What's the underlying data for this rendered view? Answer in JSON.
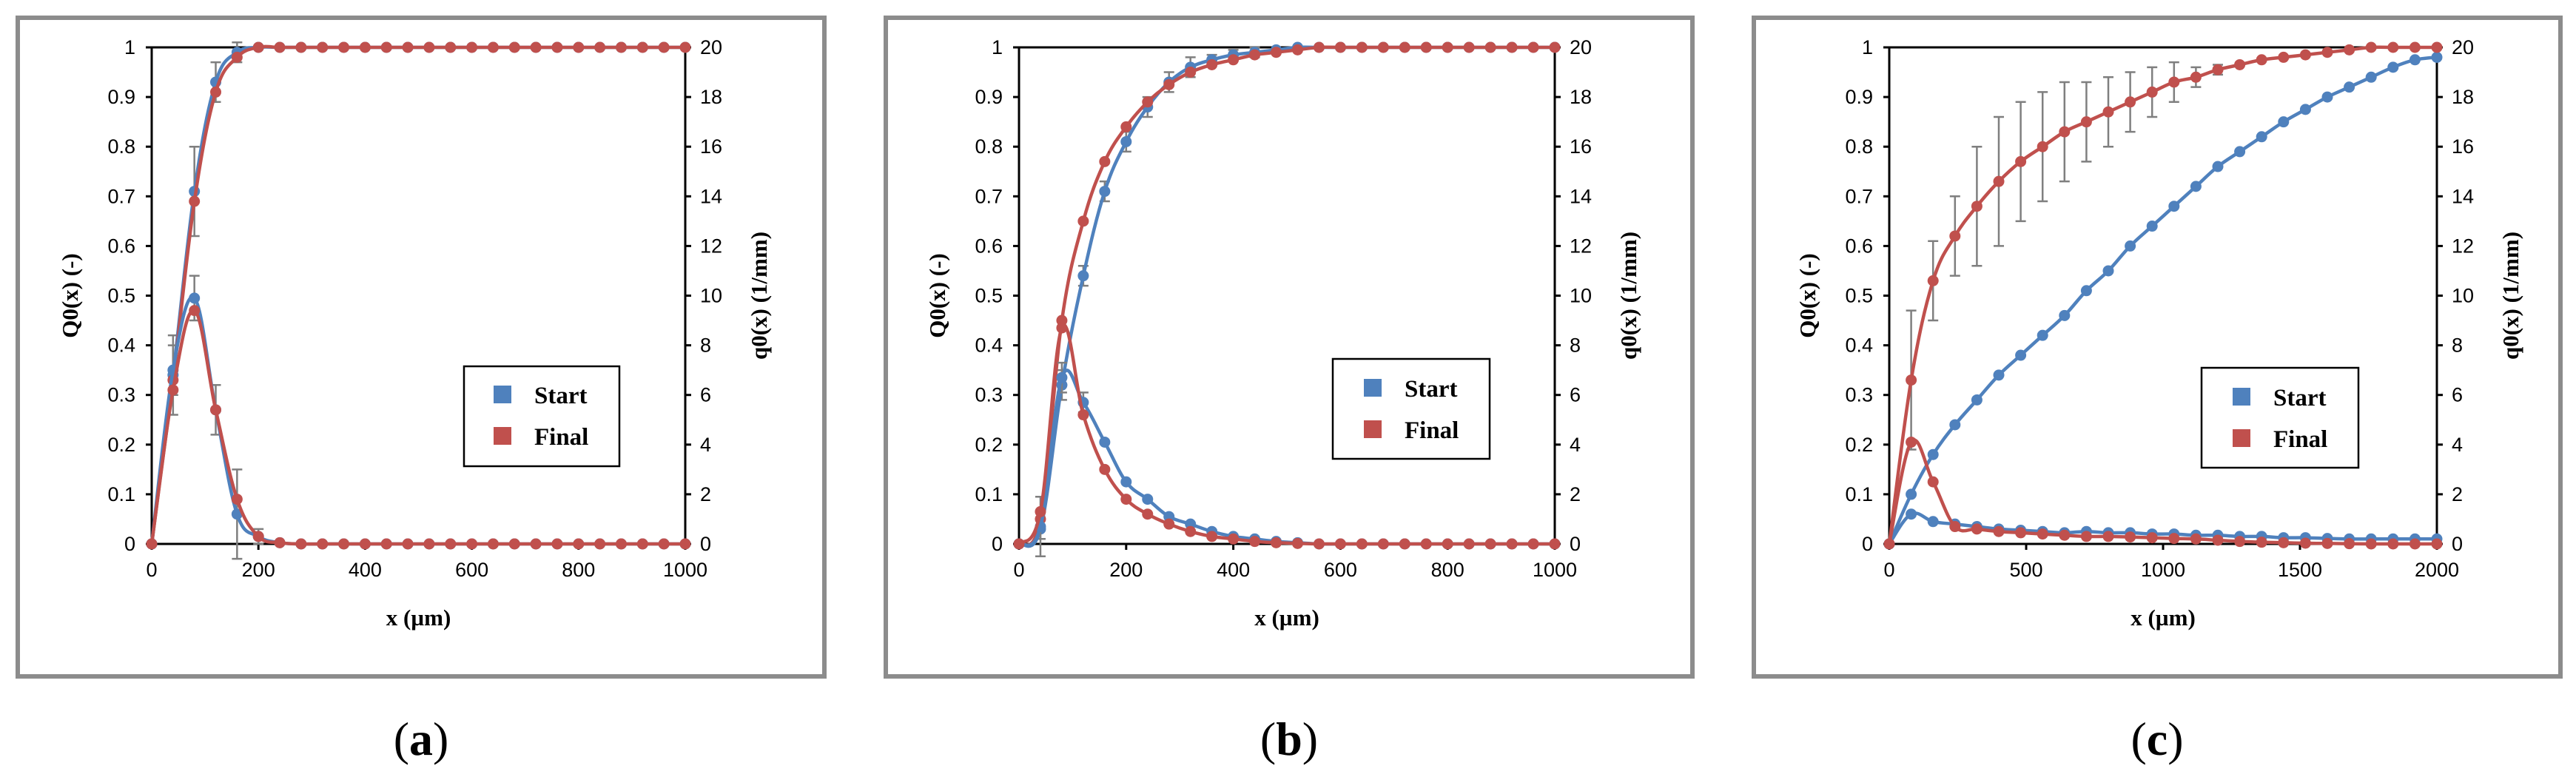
{
  "colors": {
    "start": "#4f81bd",
    "final": "#c0504d",
    "frame": "#8c8c8c"
  },
  "chart_data": [
    {
      "type": "line",
      "panel_label": "a",
      "xlabel": "x (µm)",
      "ylabel_left": "Q0(x) (-)",
      "ylabel_right": "q0(x) (1/mm)",
      "xlim": [
        0,
        1000
      ],
      "ylim_left": [
        0,
        1
      ],
      "ylim_right": [
        0,
        20
      ],
      "xticks": [
        "0",
        "200",
        "400",
        "600",
        "800",
        "1000"
      ],
      "yticks_left": [
        "0",
        "0.1",
        "0.2",
        "0.3",
        "0.4",
        "0.5",
        "0.6",
        "0.7",
        "0.8",
        "0.9",
        "1"
      ],
      "yticks_right": [
        "0",
        "2",
        "4",
        "6",
        "8",
        "10",
        "12",
        "14",
        "16",
        "18",
        "20"
      ],
      "legend": [
        "Start",
        "Final"
      ],
      "legend_position": "center-right",
      "x": [
        0,
        40,
        80,
        120,
        160,
        200,
        240,
        280,
        320,
        360,
        400,
        440,
        480,
        520,
        560,
        600,
        640,
        680,
        720,
        760,
        800,
        840,
        880,
        920,
        960,
        1000
      ],
      "series": [
        {
          "name": "Start Q0",
          "axis": "left",
          "values": [
            0,
            0.34,
            0.71,
            0.93,
            0.99,
            1,
            1,
            1,
            1,
            1,
            1,
            1,
            1,
            1,
            1,
            1,
            1,
            1,
            1,
            1,
            1,
            1,
            1,
            1,
            1,
            1
          ],
          "error": [
            0,
            0.08,
            0.09,
            0.04,
            0.02,
            0,
            0,
            0,
            0,
            0,
            0,
            0,
            0,
            0,
            0,
            0,
            0,
            0,
            0,
            0,
            0,
            0,
            0,
            0,
            0,
            0
          ]
        },
        {
          "name": "Final Q0",
          "axis": "left",
          "values": [
            0,
            0.33,
            0.69,
            0.91,
            0.98,
            1,
            1,
            1,
            1,
            1,
            1,
            1,
            1,
            1,
            1,
            1,
            1,
            1,
            1,
            1,
            1,
            1,
            1,
            1,
            1,
            1
          ]
        },
        {
          "name": "Start q0",
          "axis": "right",
          "values": [
            0,
            7.0,
            9.9,
            5.4,
            1.2,
            0.3,
            0.05,
            0,
            0,
            0,
            0,
            0,
            0,
            0,
            0,
            0,
            0,
            0,
            0,
            0,
            0,
            0,
            0,
            0,
            0,
            0
          ],
          "error": [
            0,
            1.0,
            0.9,
            1.0,
            1.8,
            0.3,
            0,
            0,
            0,
            0,
            0,
            0,
            0,
            0,
            0,
            0,
            0,
            0,
            0,
            0,
            0,
            0,
            0,
            0,
            0,
            0
          ]
        },
        {
          "name": "Final q0",
          "axis": "right",
          "values": [
            0,
            6.2,
            9.4,
            5.4,
            1.8,
            0.3,
            0.05,
            0,
            0,
            0,
            0,
            0,
            0,
            0,
            0,
            0,
            0,
            0,
            0,
            0,
            0,
            0,
            0,
            0,
            0,
            0
          ]
        }
      ]
    },
    {
      "type": "line",
      "panel_label": "b",
      "xlabel": "x (µm)",
      "ylabel_left": "Q0(x) (-)",
      "ylabel_right": "q0(x) (1/mm)",
      "xlim": [
        0,
        1000
      ],
      "ylim_left": [
        0,
        1
      ],
      "ylim_right": [
        0,
        20
      ],
      "xticks": [
        "0",
        "200",
        "400",
        "600",
        "800",
        "1000"
      ],
      "yticks_left": [
        "0",
        "0.1",
        "0.2",
        "0.3",
        "0.4",
        "0.5",
        "0.6",
        "0.7",
        "0.8",
        "0.9",
        "1"
      ],
      "yticks_right": [
        "0",
        "2",
        "4",
        "6",
        "8",
        "10",
        "12",
        "14",
        "16",
        "18",
        "20"
      ],
      "legend": [
        "Start",
        "Final"
      ],
      "legend_position": "center-right",
      "x": [
        0,
        40,
        80,
        120,
        160,
        200,
        240,
        280,
        320,
        360,
        400,
        440,
        480,
        520,
        560,
        600,
        640,
        680,
        720,
        760,
        800,
        840,
        880,
        920,
        960,
        1000
      ],
      "series": [
        {
          "name": "Start Q0",
          "axis": "left",
          "values": [
            0,
            0.03,
            0.32,
            0.54,
            0.71,
            0.81,
            0.88,
            0.93,
            0.96,
            0.975,
            0.985,
            0.99,
            0.995,
            1,
            1,
            1,
            1,
            1,
            1,
            1,
            1,
            1,
            1,
            1,
            1,
            1
          ],
          "error": [
            0,
            0.02,
            0.03,
            0.02,
            0.02,
            0.02,
            0.02,
            0.02,
            0.02,
            0.01,
            0.01,
            0.01,
            0,
            0,
            0,
            0,
            0,
            0,
            0,
            0,
            0,
            0,
            0,
            0,
            0,
            0
          ]
        },
        {
          "name": "Final Q0",
          "axis": "left",
          "values": [
            0,
            0.05,
            0.45,
            0.65,
            0.77,
            0.84,
            0.89,
            0.925,
            0.95,
            0.965,
            0.975,
            0.985,
            0.99,
            0.995,
            1,
            1,
            1,
            1,
            1,
            1,
            1,
            1,
            1,
            1,
            1,
            1
          ]
        },
        {
          "name": "Start q0",
          "axis": "right",
          "values": [
            0,
            0.7,
            6.7,
            5.7,
            4.1,
            2.5,
            1.8,
            1.1,
            0.8,
            0.5,
            0.3,
            0.2,
            0.1,
            0.05,
            0,
            0,
            0,
            0,
            0,
            0,
            0,
            0,
            0,
            0,
            0,
            0
          ],
          "error": [
            0,
            1.2,
            0.6,
            0.4,
            0,
            0,
            0,
            0,
            0,
            0,
            0,
            0,
            0,
            0,
            0,
            0,
            0,
            0,
            0,
            0,
            0,
            0,
            0,
            0,
            0,
            0
          ]
        },
        {
          "name": "Final q0",
          "axis": "right",
          "values": [
            0,
            1.3,
            8.7,
            5.2,
            3.0,
            1.8,
            1.2,
            0.8,
            0.5,
            0.3,
            0.2,
            0.1,
            0.05,
            0.02,
            0,
            0,
            0,
            0,
            0,
            0,
            0,
            0,
            0,
            0,
            0,
            0
          ]
        }
      ]
    },
    {
      "type": "line",
      "panel_label": "c",
      "xlabel": "x (µm)",
      "ylabel_left": "Q0(x) (-)",
      "ylabel_right": "q0(x) (1/mm)",
      "xlim": [
        0,
        2000
      ],
      "ylim_left": [
        0,
        1
      ],
      "ylim_right": [
        0,
        20
      ],
      "xticks": [
        "0",
        "500",
        "1000",
        "1500",
        "2000"
      ],
      "yticks_left": [
        "0",
        "0.1",
        "0.2",
        "0.3",
        "0.4",
        "0.5",
        "0.6",
        "0.7",
        "0.8",
        "0.9",
        "1"
      ],
      "yticks_right": [
        "0",
        "2",
        "4",
        "6",
        "8",
        "10",
        "12",
        "14",
        "16",
        "18",
        "20"
      ],
      "legend": [
        "Start",
        "Final"
      ],
      "legend_position": "center-right",
      "x": [
        0,
        80,
        160,
        240,
        320,
        400,
        480,
        560,
        640,
        720,
        800,
        880,
        960,
        1040,
        1120,
        1200,
        1280,
        1360,
        1440,
        1520,
        1600,
        1680,
        1760,
        1840,
        1920,
        2000
      ],
      "series": [
        {
          "name": "Start Q0",
          "axis": "left",
          "values": [
            0,
            0.1,
            0.18,
            0.24,
            0.29,
            0.34,
            0.38,
            0.42,
            0.46,
            0.51,
            0.55,
            0.6,
            0.64,
            0.68,
            0.72,
            0.76,
            0.79,
            0.82,
            0.85,
            0.875,
            0.9,
            0.92,
            0.94,
            0.96,
            0.975,
            0.98
          ]
        },
        {
          "name": "Final Q0",
          "axis": "left",
          "values": [
            0,
            0.33,
            0.53,
            0.62,
            0.68,
            0.73,
            0.77,
            0.8,
            0.83,
            0.85,
            0.87,
            0.89,
            0.91,
            0.93,
            0.94,
            0.955,
            0.965,
            0.975,
            0.98,
            0.985,
            0.99,
            0.995,
            1,
            1,
            1,
            1
          ],
          "error": [
            0,
            0.14,
            0.08,
            0.08,
            0.12,
            0.13,
            0.12,
            0.11,
            0.1,
            0.08,
            0.07,
            0.06,
            0.05,
            0.04,
            0.02,
            0.01,
            0,
            0,
            0,
            0,
            0,
            0,
            0,
            0,
            0,
            0
          ]
        },
        {
          "name": "Start q0",
          "axis": "right",
          "values": [
            0,
            1.2,
            0.9,
            0.8,
            0.7,
            0.6,
            0.55,
            0.5,
            0.45,
            0.5,
            0.45,
            0.45,
            0.4,
            0.4,
            0.35,
            0.35,
            0.3,
            0.3,
            0.25,
            0.25,
            0.22,
            0.2,
            0.2,
            0.2,
            0.2,
            0.2
          ]
        },
        {
          "name": "Final q0",
          "axis": "right",
          "values": [
            0,
            4.1,
            2.5,
            0.7,
            0.6,
            0.5,
            0.45,
            0.4,
            0.35,
            0.3,
            0.3,
            0.28,
            0.25,
            0.22,
            0.2,
            0.15,
            0.1,
            0.07,
            0.05,
            0.03,
            0.02,
            0.01,
            0,
            0,
            0,
            0
          ]
        }
      ]
    }
  ]
}
